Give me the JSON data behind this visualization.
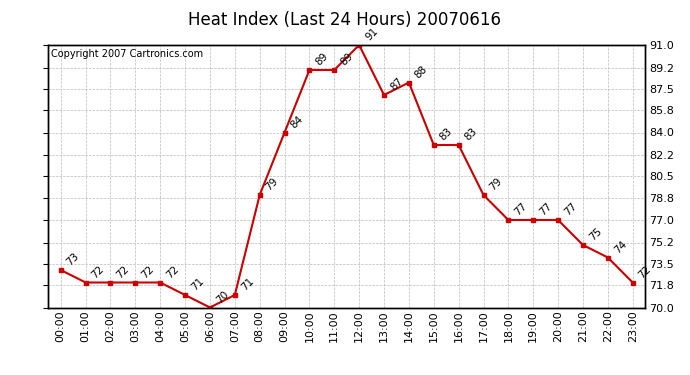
{
  "title": "Heat Index (Last 24 Hours) 20070616",
  "copyright": "Copyright 2007 Cartronics.com",
  "hours": [
    "00:00",
    "01:00",
    "02:00",
    "03:00",
    "04:00",
    "05:00",
    "06:00",
    "07:00",
    "08:00",
    "09:00",
    "10:00",
    "11:00",
    "12:00",
    "13:00",
    "14:00",
    "15:00",
    "16:00",
    "17:00",
    "18:00",
    "19:00",
    "20:00",
    "21:00",
    "22:00",
    "23:00"
  ],
  "values": [
    73,
    72,
    72,
    72,
    72,
    71,
    70,
    71,
    79,
    84,
    89,
    89,
    91,
    87,
    88,
    83,
    83,
    79,
    77,
    77,
    77,
    75,
    74,
    72
  ],
  "ylim": [
    70.0,
    91.0
  ],
  "yticks": [
    70.0,
    71.8,
    73.5,
    75.2,
    77.0,
    78.8,
    80.5,
    82.2,
    84.0,
    85.8,
    87.5,
    89.2,
    91.0
  ],
  "line_color": "#cc0000",
  "marker": "s",
  "marker_size": 3.5,
  "bg_color": "#ffffff",
  "grid_color": "#bbbbbb",
  "title_fontsize": 12,
  "tick_fontsize": 8,
  "annotation_fontsize": 7.5,
  "copyright_fontsize": 7,
  "figwidth": 6.9,
  "figheight": 3.75,
  "dpi": 100
}
